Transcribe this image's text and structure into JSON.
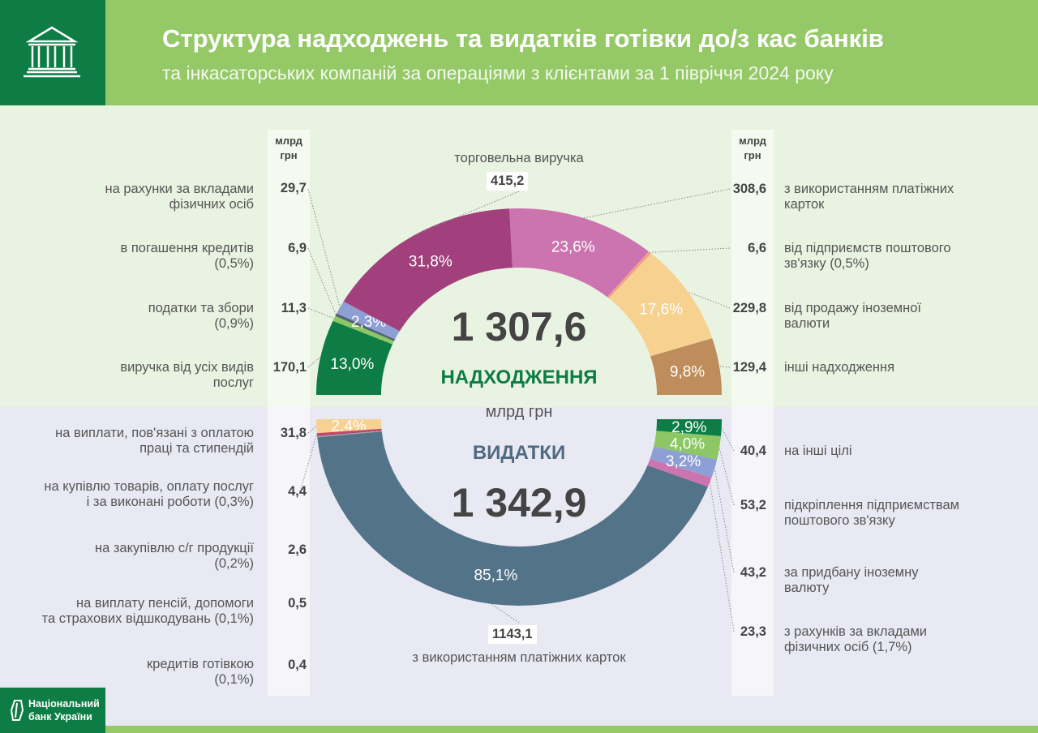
{
  "header": {
    "title": "Структура надходжень та видатків готівки до/з кас банків",
    "subtitle": "та інкасаторських компаній за операціями з клієнтами за 1 півріччя 2024 року",
    "logo_icon": "bank-building-icon"
  },
  "footer": {
    "brand": "Національний\nбанк України"
  },
  "unit_label": "млрд\nгрн",
  "chart_data": [
    {
      "type": "pie",
      "variant": "half-donut-top",
      "title": "НАДХОДЖЕННЯ",
      "total": "1 307,6",
      "unit": "млрд грн",
      "title_color": "#0d7c45",
      "segments": [
        {
          "label": "виручка від усіх видів\nпослуг",
          "value": "170,1",
          "percent": 13.0,
          "color": "#0d7c45"
        },
        {
          "label": "податки та збори\n(0,9%)",
          "value": "11,3",
          "percent": 0.9,
          "color": "#8cc665"
        },
        {
          "label": "в погашення кредитів\n(0,5%)",
          "value": "6,9",
          "percent": 0.5,
          "color": "#50636e"
        },
        {
          "label": "на рахунки за вкладами\nфізичних осіб",
          "value": "29,7",
          "percent": 2.3,
          "color": "#8e9fd6"
        },
        {
          "label": "торговельна виручка",
          "value": "415,2",
          "percent": 31.8,
          "color": "#a1407c"
        },
        {
          "label": "з використанням платіжних\nкарток",
          "value": "308,6",
          "percent": 23.6,
          "color": "#cc74b0"
        },
        {
          "label": "від підприємств поштового\nзв'язку (0,5%)",
          "value": "6,6",
          "percent": 0.5,
          "color": "#f2a08a"
        },
        {
          "label": "від продажу іноземної\nвалюти",
          "value": "229,8",
          "percent": 17.6,
          "color": "#f7d190"
        },
        {
          "label": "інші надходження",
          "value": "129,4",
          "percent": 9.8,
          "color": "#bf8d5b"
        }
      ]
    },
    {
      "type": "pie",
      "variant": "half-donut-bottom",
      "title": "ВИДАТКИ",
      "total": "1 342,9",
      "unit": "млрд грн",
      "title_color": "#4f6a80",
      "segments": [
        {
          "label": "на виплати, пов'язані з оплатою\nпраці та стипендій",
          "value": "31,8",
          "percent": 2.4,
          "color": "#f7d190"
        },
        {
          "label": "на купівлю товарів, оплату послуг\nі за виконані роботи (0,3%)",
          "value": "4,4",
          "percent": 0.3,
          "color": "#c8455a"
        },
        {
          "label": "на закупівлю с/г продукції\n(0,2%)",
          "value": "2,6",
          "percent": 0.2,
          "color": "#a1407c"
        },
        {
          "label": "на виплату пенсій, допомоги\nта страхових відшкодувань (0,1%)",
          "value": "0,5",
          "percent": 0.1,
          "color": "#8e9fd6"
        },
        {
          "label": "кредитів готівкою\n(0,1%)",
          "value": "0,4",
          "percent": 0.1,
          "color": "#bf8d5b"
        },
        {
          "label": "з використанням платіжних карток",
          "value": "1143,1",
          "percent": 85.1,
          "color": "#537389"
        },
        {
          "label": "з рахунків за вкладами\nфізичних осіб (1,7%)",
          "value": "23,3",
          "percent": 1.7,
          "color": "#cc74b0"
        },
        {
          "label": "за придбану іноземну\nвалюту",
          "value": "43,2",
          "percent": 3.2,
          "color": "#8e9fd6"
        },
        {
          "label": "підкріплення підприємствам\nпоштового зв'язку",
          "value": "53,2",
          "percent": 4.0,
          "color": "#8cc665"
        },
        {
          "label": "на інші цілі",
          "value": "40,4",
          "percent": 2.9,
          "color": "#0d7c45"
        }
      ]
    }
  ]
}
